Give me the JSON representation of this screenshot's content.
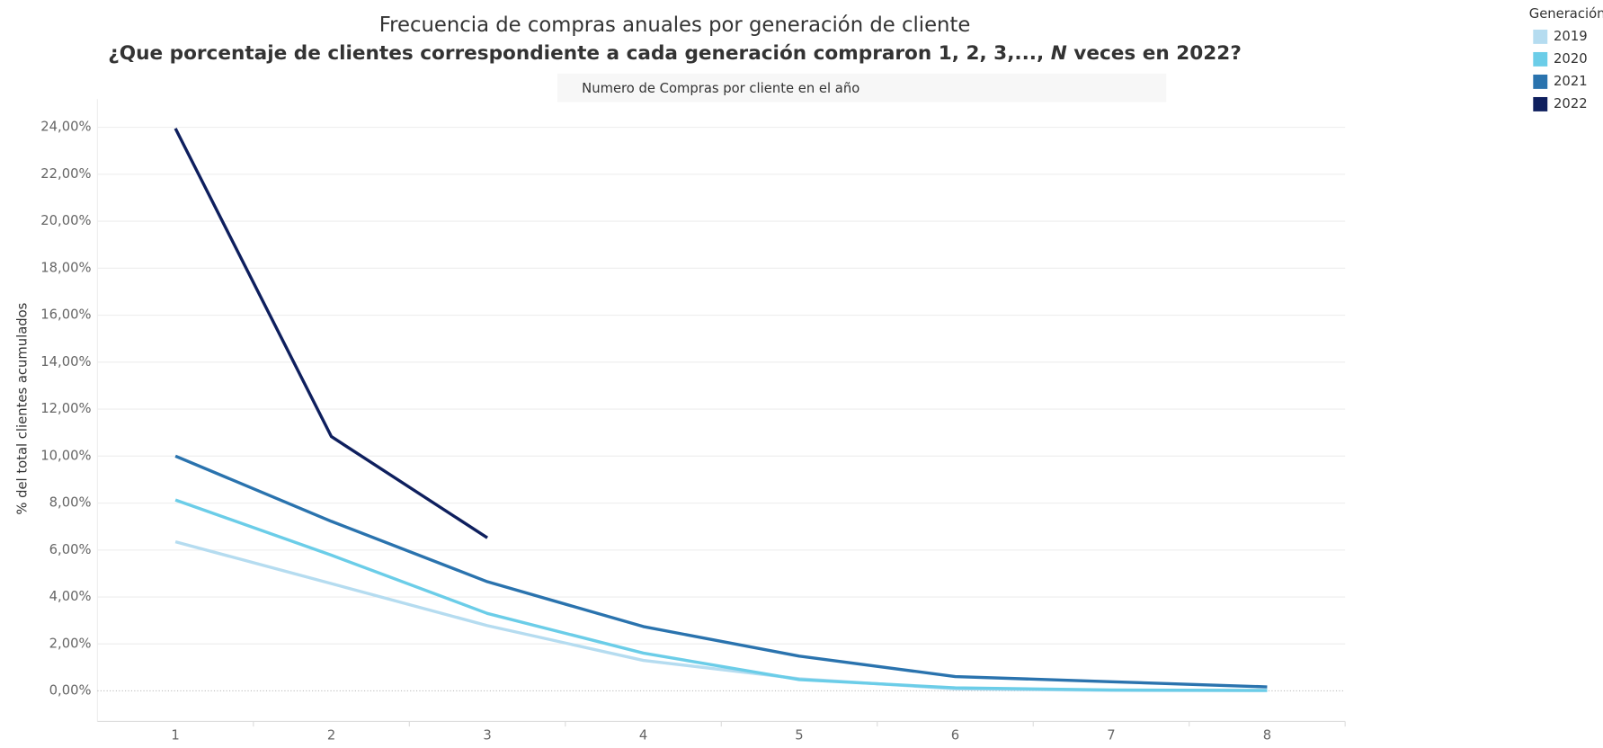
{
  "chart_data": {
    "type": "line",
    "title": "Frecuencia de compras anuales por generación de cliente",
    "subtitle": [
      "¿Que porcentaje de clientes correspondiente a cada generación compraron 1, 2, 3,..., ",
      "N",
      " veces en 2022?"
    ],
    "x_label": "Numero de Compras por cliente en el año",
    "y_label": "% del total clientes acumulados",
    "legend_title": "Generación",
    "legend_position": "top-right",
    "x": [
      1,
      2,
      3,
      4,
      5,
      6,
      7,
      8
    ],
    "series": [
      {
        "name": "2019",
        "color": "#b5dcf0",
        "values": [
          6.35,
          4.57,
          2.78,
          1.3,
          0.52,
          0.09,
          0.02,
          0.01
        ]
      },
      {
        "name": "2020",
        "color": "#6bcde8",
        "values": [
          8.13,
          5.78,
          3.3,
          1.61,
          0.48,
          0.13,
          0.04,
          0.02
        ]
      },
      {
        "name": "2021",
        "color": "#2a73ae",
        "values": [
          10.0,
          7.22,
          4.65,
          2.74,
          1.48,
          0.61,
          0.39,
          0.17
        ]
      },
      {
        "name": "2022",
        "color": "#0e1f5e",
        "values": [
          23.95,
          10.83,
          6.52,
          null,
          null,
          null,
          null,
          null
        ]
      }
    ],
    "xlim": [
      0.5,
      8.5
    ],
    "ylim": [
      -1.3,
      25.2
    ],
    "xticks": [
      1,
      2,
      3,
      4,
      5,
      6,
      7,
      8
    ],
    "yticks": [
      {
        "value": 0,
        "label": "0,00%"
      },
      {
        "value": 2,
        "label": "2,00%"
      },
      {
        "value": 4,
        "label": "4,00%"
      },
      {
        "value": 6,
        "label": "6,00%"
      },
      {
        "value": 8,
        "label": "8,00%"
      },
      {
        "value": 10,
        "label": "10,00%"
      },
      {
        "value": 12,
        "label": "12,00%"
      },
      {
        "value": 14,
        "label": "14,00%"
      },
      {
        "value": 16,
        "label": "16,00%"
      },
      {
        "value": 18,
        "label": "18,00%"
      },
      {
        "value": 20,
        "label": "20,00%"
      },
      {
        "value": 22,
        "label": "22,00%"
      },
      {
        "value": 24,
        "label": "24,00%"
      }
    ],
    "grid": true
  }
}
